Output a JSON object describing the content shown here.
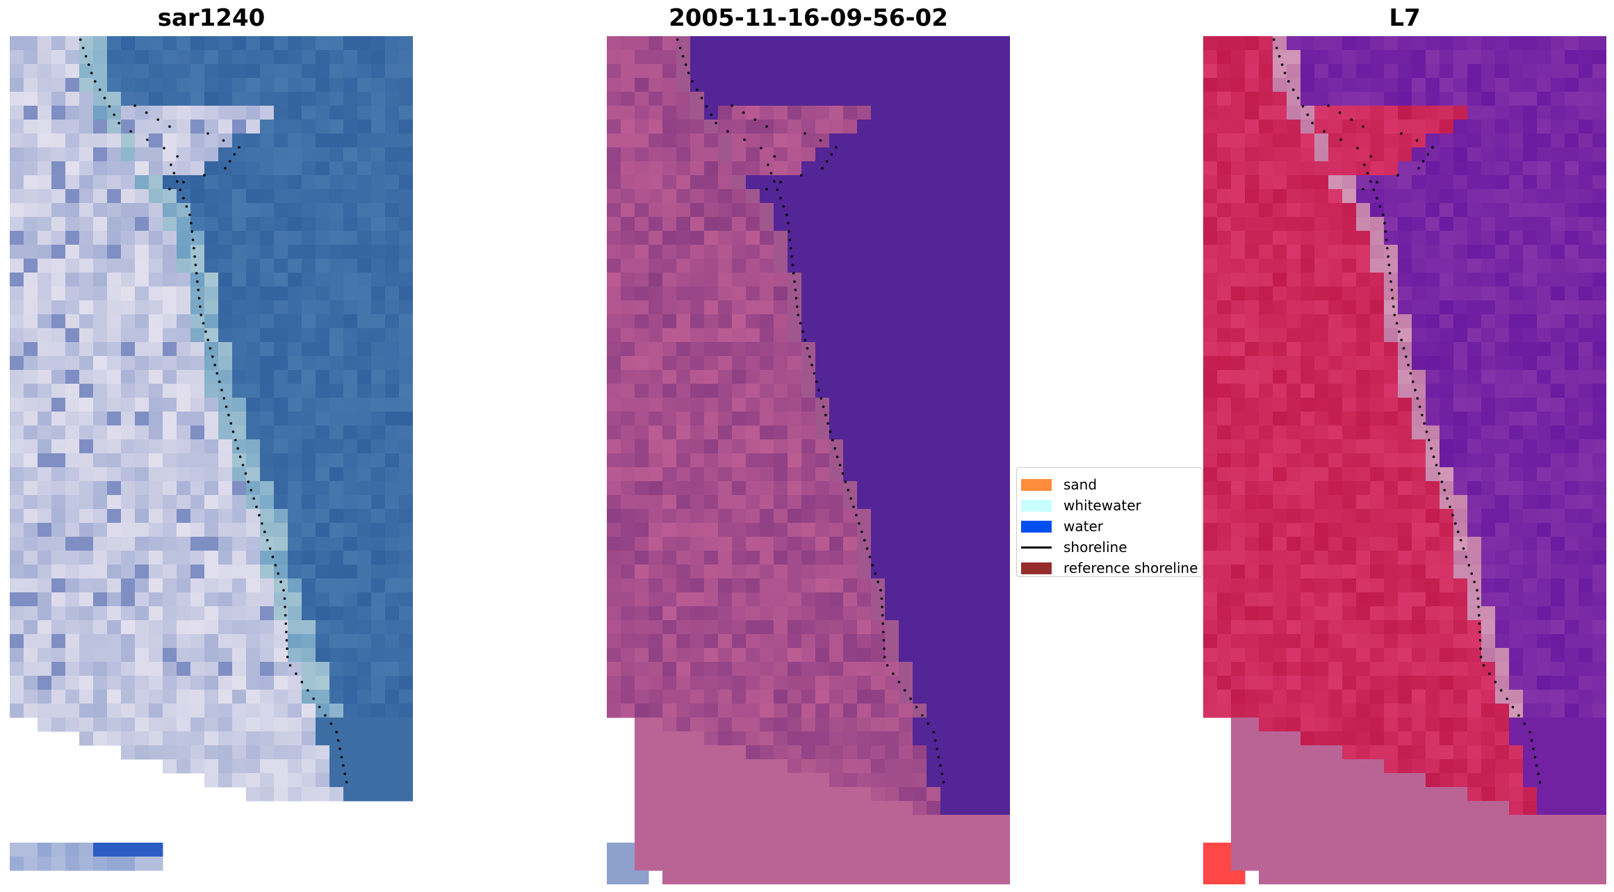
{
  "panels": [
    {
      "title": "sar1240",
      "style": "rgb"
    },
    {
      "title": "2005-11-16-09-56-02",
      "style": "classified"
    },
    {
      "title": "L7",
      "style": "mndwi"
    }
  ],
  "legend": {
    "items": [
      {
        "label": "sand",
        "kind": "patch",
        "color": "#ff8c3a"
      },
      {
        "label": "whitewater",
        "kind": "patch",
        "color": "#c8ffff"
      },
      {
        "label": "water",
        "kind": "patch",
        "color": "#0050f0"
      },
      {
        "label": "shoreline",
        "kind": "line",
        "color": "#000000"
      },
      {
        "label": "reference shoreline",
        "kind": "patch",
        "color": "#962d2d"
      }
    ]
  },
  "colors": {
    "sar_water": "#3c6ea4",
    "sar_land": "#b4bcd8",
    "classified_water": "#532596",
    "classified_land": "#a24f8b",
    "classified_nodata": "#ba6496",
    "mndwi_land": "#cc2557",
    "mndwi_water": "#7321a3",
    "mndwi_nodata": "#ba6496"
  }
}
